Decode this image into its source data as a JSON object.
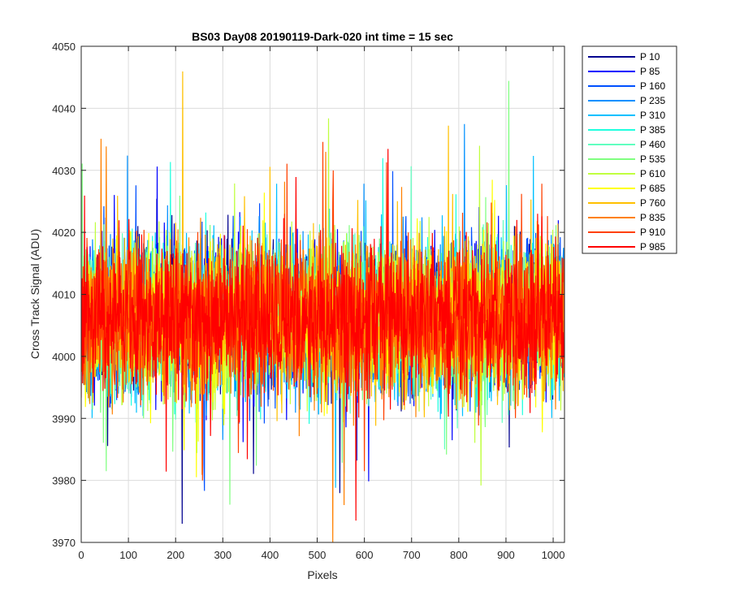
{
  "chart_data": {
    "type": "line",
    "title": "BS03 Day08 20190119-Dark-020 int time = 15 sec",
    "xlabel": "Pixels",
    "ylabel": "Cross Track Signal (ADU)",
    "xlim": [
      0,
      1024
    ],
    "ylim": [
      3970,
      4050
    ],
    "xticks": [
      0,
      100,
      200,
      300,
      400,
      500,
      600,
      700,
      800,
      900,
      1000
    ],
    "yticks": [
      3970,
      3980,
      3990,
      4000,
      4010,
      4020,
      4030,
      4040,
      4050
    ],
    "grid": true,
    "legend_position": "outside-top-right",
    "noise_profile": {
      "center": 4006,
      "amplitude": 6
    },
    "series": [
      {
        "name": "P 10",
        "color": "#00008f",
        "seed": 11
      },
      {
        "name": "P 85",
        "color": "#0000ff",
        "seed": 23
      },
      {
        "name": "P 160",
        "color": "#0050ff",
        "seed": 37
      },
      {
        "name": "P 235",
        "color": "#0090ff",
        "seed": 41
      },
      {
        "name": "P 310",
        "color": "#00c0ff",
        "seed": 53
      },
      {
        "name": "P 385",
        "color": "#20ffdf",
        "seed": 67
      },
      {
        "name": "P 460",
        "color": "#60ffc0",
        "seed": 71
      },
      {
        "name": "P 535",
        "color": "#80ff80",
        "seed": 83
      },
      {
        "name": "P 610",
        "color": "#c0ff40",
        "seed": 97
      },
      {
        "name": "P 685",
        "color": "#ffff00",
        "seed": 101
      },
      {
        "name": "P 760",
        "color": "#ffc000",
        "seed": 113
      },
      {
        "name": "P 835",
        "color": "#ff8000",
        "seed": 127
      },
      {
        "name": "P 910",
        "color": "#ff4000",
        "seed": 131
      },
      {
        "name": "P 985",
        "color": "#ff0000",
        "seed": 139
      }
    ]
  }
}
